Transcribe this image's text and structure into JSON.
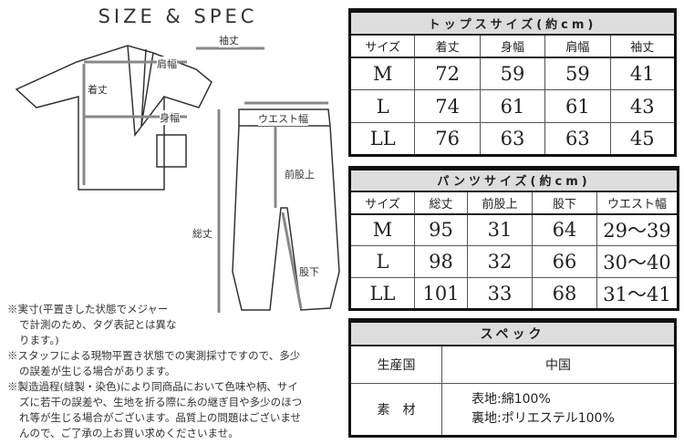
{
  "title": "SIZE & SPEC",
  "diagram": {
    "sleeve": "袖丈",
    "shoulder": "肩幅",
    "length": "着丈",
    "body": "身幅",
    "waist": "ウエスト幅",
    "rise": "前股上",
    "total": "総丈",
    "inseam": "股下"
  },
  "notes": [
    "※実寸(平置きした状態でメジャー",
    "で計測のため、タグ表記とは異な",
    "ります。)",
    "※スタッフによる現物平置き状態での実測採寸ですので、多少",
    "の誤差が生じる場合があります。",
    "※製造過程(縫製・染色)により同商品において色味や柄、サイ",
    "ズに若干の誤差や、生地を折る際に糸の継ぎ目や多少のほつ",
    "れ等が生じる場合がございます。品質上の問題はございませ",
    "んので、ご了承の上お買い求めくださいませ。"
  ],
  "tops": {
    "title": "トップスサイズ(約cm)",
    "headers": [
      "サイズ",
      "着丈",
      "身幅",
      "肩幅",
      "袖丈"
    ],
    "rows": [
      [
        "M",
        "72",
        "59",
        "59",
        "41"
      ],
      [
        "L",
        "74",
        "61",
        "61",
        "43"
      ],
      [
        "LL",
        "76",
        "63",
        "63",
        "45"
      ]
    ]
  },
  "pants": {
    "title": "パンツサイズ(約cm)",
    "headers": [
      "サイズ",
      "総丈",
      "前股上",
      "股下",
      "ウエスト幅"
    ],
    "rows": [
      [
        "M",
        "95",
        "31",
        "64",
        "29〜39"
      ],
      [
        "L",
        "98",
        "32",
        "66",
        "30〜40"
      ],
      [
        "LL",
        "101",
        "33",
        "68",
        "31〜41"
      ]
    ]
  },
  "spec": {
    "title": "スペック",
    "origin_label": "生産国",
    "origin": "中国",
    "material_label": "素　材",
    "material": [
      "表地:綿100%",
      "裏地:ポリエステル100%"
    ]
  }
}
